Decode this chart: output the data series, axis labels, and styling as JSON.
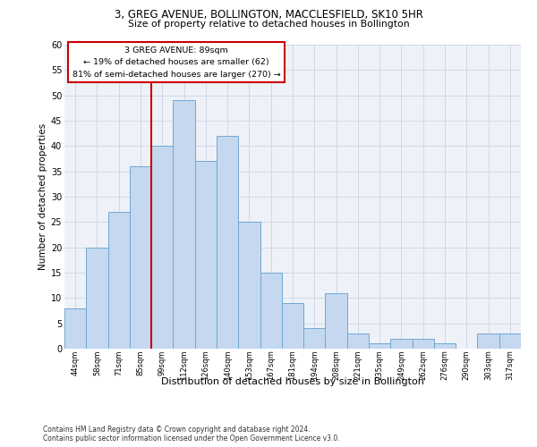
{
  "title1": "3, GREG AVENUE, BOLLINGTON, MACCLESFIELD, SK10 5HR",
  "title2": "Size of property relative to detached houses in Bollington",
  "xlabel": "Distribution of detached houses by size in Bollington",
  "ylabel": "Number of detached properties",
  "categories": [
    "44sqm",
    "58sqm",
    "71sqm",
    "85sqm",
    "99sqm",
    "112sqm",
    "126sqm",
    "140sqm",
    "153sqm",
    "167sqm",
    "181sqm",
    "194sqm",
    "208sqm",
    "221sqm",
    "235sqm",
    "249sqm",
    "262sqm",
    "276sqm",
    "290sqm",
    "303sqm",
    "317sqm"
  ],
  "values": [
    8,
    20,
    27,
    36,
    40,
    49,
    37,
    42,
    25,
    15,
    9,
    4,
    11,
    3,
    1,
    2,
    2,
    1,
    0,
    3,
    3
  ],
  "bar_color": "#c5d8f0",
  "bar_edge_color": "#6fa8d4",
  "vline_x_idx": 3.5,
  "annotation_title": "3 GREG AVENUE: 89sqm",
  "annotation_line1": "← 19% of detached houses are smaller (62)",
  "annotation_line2": "81% of semi-detached houses are larger (270) →",
  "annotation_box_color": "#ffffff",
  "annotation_box_edge": "#cc0000",
  "vline_color": "#cc0000",
  "ylim": [
    0,
    60
  ],
  "yticks": [
    0,
    5,
    10,
    15,
    20,
    25,
    30,
    35,
    40,
    45,
    50,
    55,
    60
  ],
  "grid_color": "#d0d8e8",
  "background_color": "#eef2f8",
  "footer1": "Contains HM Land Registry data © Crown copyright and database right 2024.",
  "footer2": "Contains public sector information licensed under the Open Government Licence v3.0."
}
